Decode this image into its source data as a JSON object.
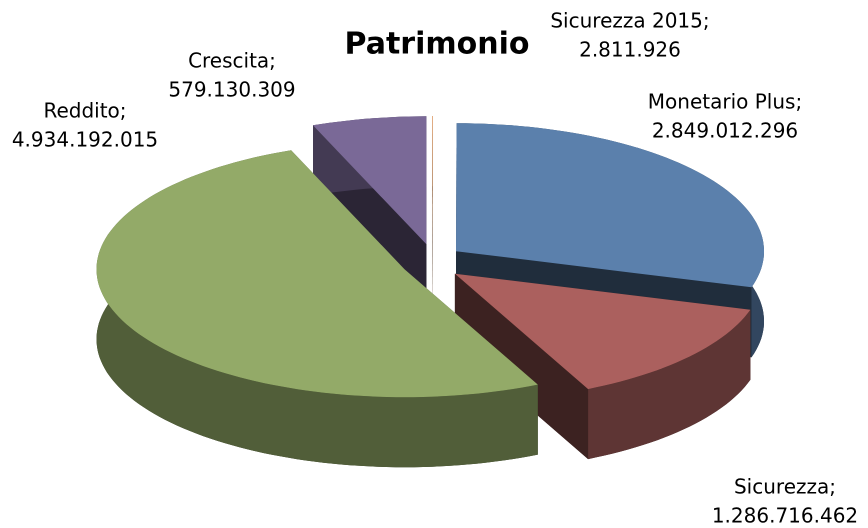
{
  "chart_data": {
    "type": "pie",
    "title": "Patrimonio",
    "categories": [
      "Sicurezza 2015;",
      "Monetario Plus;",
      "Sicurezza;",
      "Reddito;",
      "Crescita;"
    ],
    "values": [
      2811926,
      2849012296,
      1286716462,
      4934192015,
      579130309
    ],
    "value_labels": [
      "2.811.926",
      "2.849.012.296",
      "1.286.716.462",
      "4.934.192.015",
      "579.130.309"
    ],
    "colors": [
      "#e3904e",
      "#5b80ac",
      "#ab605e",
      "#93aa68",
      "#7a6997"
    ]
  }
}
